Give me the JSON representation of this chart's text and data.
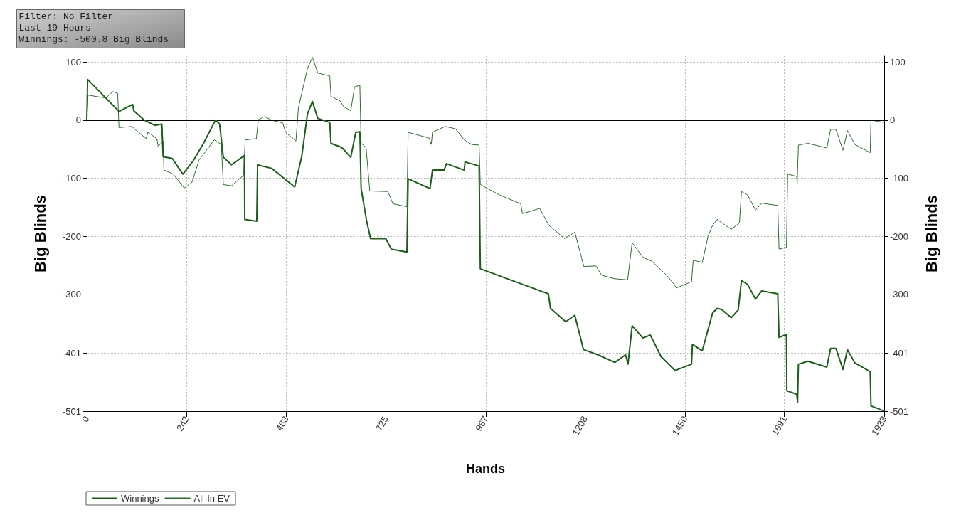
{
  "chart_data": {
    "type": "line",
    "xlabel": "Hands",
    "ylabel": "Big Blinds",
    "y2label": "Big Blinds",
    "annotations": [
      "Filter: No Filter",
      "Last 19 Hours",
      "Winnings: -500.8 Big Blinds"
    ],
    "xlim": [
      0,
      1933
    ],
    "xticks": [
      0,
      242,
      483,
      725,
      967,
      1208,
      1450,
      1691,
      1933
    ],
    "ylim": [
      -501,
      110
    ],
    "yticks": [
      -501,
      -401,
      -300,
      -200,
      -100,
      0,
      100
    ],
    "y2lim": [
      -501,
      110
    ],
    "y2ticks": [
      -501,
      -401,
      -300,
      -200,
      -100,
      0,
      100
    ],
    "grid": true,
    "legend": "bottom left",
    "marker": "none",
    "line_style": "solid",
    "ref_lines": [
      {
        "axis": "y",
        "value": 0,
        "color": "#000000"
      }
    ],
    "series": [
      {
        "name": "Winnings",
        "color": "#1a5e1a",
        "x": [
          0,
          2,
          78,
          111,
          114,
          139,
          165,
          182,
          185,
          207,
          233,
          258,
          283,
          312,
          322,
          331,
          351,
          382,
          383,
          412,
          414,
          448,
          504,
          521,
          535,
          547,
          560,
          589,
          592,
          618,
          640,
          652,
          662,
          665,
          679,
          688,
          725,
          738,
          776,
          779,
          832,
          838,
          866,
          872,
          915,
          917,
          951,
          954,
          1119,
          1124,
          1161,
          1183,
          1204,
          1239,
          1280,
          1306,
          1312,
          1322,
          1348,
          1366,
          1392,
          1426,
          1466,
          1468,
          1492,
          1517,
          1528,
          1539,
          1562,
          1579,
          1587,
          1602,
          1621,
          1636,
          1675,
          1678,
          1696,
          1697,
          1721,
          1723,
          1725,
          1748,
          1794,
          1803,
          1816,
          1833,
          1844,
          1862,
          1899,
          1901,
          1933
        ],
        "values": [
          0,
          70,
          15,
          27,
          16,
          0,
          -9,
          -7,
          -63,
          -66,
          -93,
          -70,
          -40,
          0,
          -7,
          -64,
          -77,
          -61,
          -171,
          -174,
          -77,
          -83,
          -115,
          -63,
          11,
          32,
          3,
          -4,
          -40,
          -47,
          -64,
          -21,
          -20,
          -118,
          -176,
          -204,
          -204,
          -222,
          -227,
          -101,
          -118,
          -86,
          -86,
          -75,
          -86,
          -72,
          -79,
          -256,
          -299,
          -324,
          -347,
          -336,
          -395,
          -404,
          -417,
          -404,
          -420,
          -354,
          -375,
          -370,
          -407,
          -431,
          -420,
          -386,
          -397,
          -332,
          -324,
          -326,
          -340,
          -327,
          -276,
          -283,
          -308,
          -294,
          -299,
          -374,
          -369,
          -466,
          -472,
          -486,
          -420,
          -415,
          -425,
          -393,
          -393,
          -429,
          -395,
          -418,
          -433,
          -492,
          -500.8
        ]
      },
      {
        "name": "All-In EV",
        "color": "#2d6e2d",
        "x": [
          0,
          3,
          46,
          63,
          75,
          78,
          109,
          144,
          148,
          170,
          173,
          185,
          187,
          210,
          236,
          255,
          272,
          309,
          326,
          331,
          351,
          380,
          384,
          411,
          416,
          431,
          448,
          475,
          482,
          507,
          513,
          535,
          547,
          560,
          589,
          592,
          614,
          623,
          640,
          649,
          662,
          665,
          677,
          686,
          730,
          742,
          776,
          779,
          830,
          835,
          838,
          869,
          894,
          915,
          933,
          951,
          954,
          1001,
          1052,
          1056,
          1098,
          1120,
          1158,
          1183,
          1205,
          1234,
          1248,
          1280,
          1311,
          1322,
          1348,
          1370,
          1407,
          1424,
          1429,
          1466,
          1470,
          1492,
          1506,
          1517,
          1528,
          1562,
          1582,
          1587,
          1602,
          1621,
          1636,
          1675,
          1678,
          1696,
          1699,
          1721,
          1722,
          1725,
          1748,
          1794,
          1803,
          1816,
          1833,
          1844,
          1862,
          1899,
          1901,
          1933
        ],
        "values": [
          0,
          43,
          38,
          49,
          46,
          -13,
          -11,
          -32,
          -21,
          -32,
          -45,
          -36,
          -86,
          -93,
          -117,
          -107,
          -69,
          -34,
          -42,
          -111,
          -113,
          -95,
          -34,
          -32,
          1,
          6,
          0,
          -5,
          -21,
          -36,
          21,
          89,
          108,
          81,
          76,
          41,
          33,
          23,
          16,
          57,
          60,
          -40,
          -47,
          -122,
          -123,
          -144,
          -149,
          -21,
          -31,
          -42,
          -21,
          -11,
          -15,
          -34,
          -42,
          -43,
          -111,
          -129,
          -144,
          -161,
          -152,
          -181,
          -204,
          -193,
          -252,
          -251,
          -267,
          -273,
          -275,
          -211,
          -236,
          -243,
          -268,
          -283,
          -289,
          -278,
          -241,
          -245,
          -200,
          -181,
          -171,
          -188,
          -177,
          -123,
          -129,
          -155,
          -143,
          -147,
          -222,
          -219,
          -93,
          -97,
          -109,
          -43,
          -40,
          -48,
          -16,
          -16,
          -52,
          -18,
          -42,
          -56,
          0,
          -4
        ]
      }
    ]
  }
}
